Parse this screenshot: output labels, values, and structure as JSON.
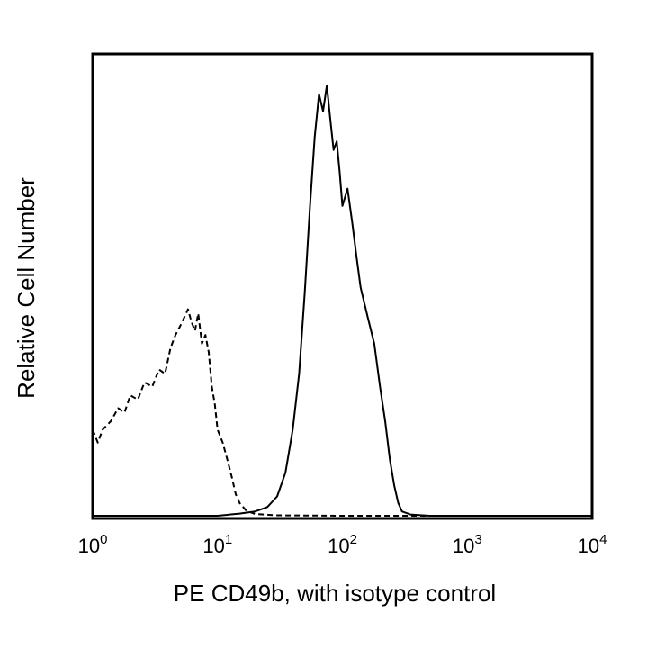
{
  "chart_data": {
    "type": "line",
    "title": "",
    "xlabel": "PE CD49b, with isotype control",
    "ylabel": "Relative Cell Number",
    "x_scale": "log",
    "xlim": [
      1,
      10000
    ],
    "ylim": [
      0,
      1.0
    ],
    "x_ticks": [
      {
        "value": 1,
        "base": "10",
        "exp": "0"
      },
      {
        "value": 10,
        "base": "10",
        "exp": "1"
      },
      {
        "value": 100,
        "base": "10",
        "exp": "2"
      },
      {
        "value": 1000,
        "base": "10",
        "exp": "3"
      },
      {
        "value": 10000,
        "base": "10",
        "exp": "4"
      }
    ],
    "grid": false,
    "legend": "none",
    "series": [
      {
        "style": "solid",
        "color": "#000000",
        "x": [
          1,
          10,
          15,
          20,
          25,
          30,
          35,
          40,
          45,
          50,
          55,
          60,
          65,
          70,
          75,
          80,
          85,
          90,
          95,
          100,
          110,
          120,
          130,
          140,
          160,
          180,
          200,
          220,
          240,
          260,
          280,
          300,
          350,
          500,
          1000,
          2000,
          5000,
          10000
        ],
        "y": [
          0.0,
          0.0,
          0.005,
          0.01,
          0.02,
          0.045,
          0.1,
          0.2,
          0.33,
          0.52,
          0.72,
          0.88,
          0.98,
          0.94,
          1.0,
          0.92,
          0.85,
          0.87,
          0.8,
          0.72,
          0.76,
          0.68,
          0.6,
          0.53,
          0.46,
          0.4,
          0.3,
          0.22,
          0.13,
          0.07,
          0.03,
          0.01,
          0.003,
          0.0,
          0.0,
          0.0,
          0.0,
          0.0
        ]
      },
      {
        "style": "dashed",
        "color": "#000000",
        "x": [
          1,
          1.1,
          1.2,
          1.4,
          1.6,
          1.8,
          2.0,
          2.3,
          2.6,
          3.0,
          3.4,
          3.8,
          4.2,
          4.6,
          5.0,
          5.4,
          5.8,
          6.2,
          6.6,
          7.0,
          7.5,
          8.0,
          8.5,
          9.0,
          9.5,
          10,
          11,
          12,
          13,
          14,
          15,
          17,
          20,
          30,
          100,
          1000,
          10000
        ],
        "y": [
          0.2,
          0.17,
          0.2,
          0.22,
          0.25,
          0.24,
          0.28,
          0.27,
          0.31,
          0.3,
          0.34,
          0.33,
          0.39,
          0.42,
          0.44,
          0.46,
          0.48,
          0.45,
          0.43,
          0.47,
          0.4,
          0.42,
          0.38,
          0.3,
          0.26,
          0.2,
          0.17,
          0.13,
          0.09,
          0.05,
          0.03,
          0.012,
          0.004,
          0.001,
          0.0,
          0.0,
          0.0
        ]
      }
    ]
  }
}
